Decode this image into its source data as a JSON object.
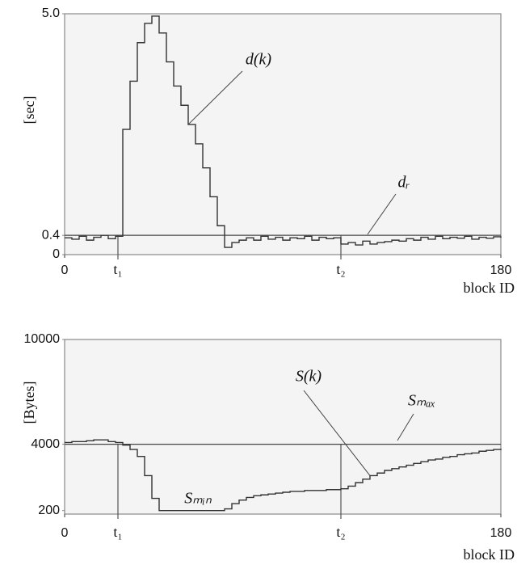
{
  "chart_data": [
    {
      "type": "line",
      "step": true,
      "y_label": "[sec]",
      "x_label": "block ID",
      "xlim": [
        0,
        180
      ],
      "xticks": [
        0,
        {
          "value": 22,
          "label": "t₁"
        },
        {
          "value": 114,
          "label": "t₂"
        },
        180
      ],
      "ylim": [
        0,
        5
      ],
      "yticks": [
        0,
        0.4,
        {
          "value": 5,
          "label": "5.0"
        }
      ],
      "reference": {
        "name": "dᵣ",
        "value": 0.4
      },
      "x": [
        0,
        3,
        6,
        9,
        12,
        15,
        18,
        21,
        24,
        27,
        30,
        33,
        36,
        39,
        42,
        45,
        48,
        51,
        54,
        57,
        60,
        63,
        66,
        69,
        72,
        75,
        78,
        81,
        84,
        87,
        90,
        93,
        96,
        99,
        102,
        105,
        108,
        111,
        114,
        117,
        120,
        123,
        126,
        129,
        132,
        135,
        138,
        141,
        144,
        147,
        150,
        153,
        156,
        159,
        162,
        165,
        168,
        171,
        174,
        177,
        180
      ],
      "series": [
        {
          "name": "d(k)",
          "color": "#333333",
          "values": [
            0.35,
            0.32,
            0.38,
            0.3,
            0.36,
            0.4,
            0.33,
            0.38,
            2.6,
            3.6,
            4.4,
            4.8,
            4.95,
            4.6,
            4.0,
            3.5,
            3.1,
            2.7,
            2.3,
            1.8,
            1.2,
            0.6,
            0.15,
            0.25,
            0.3,
            0.35,
            0.3,
            0.38,
            0.32,
            0.36,
            0.3,
            0.35,
            0.33,
            0.38,
            0.3,
            0.36,
            0.33,
            0.35,
            0.22,
            0.25,
            0.2,
            0.28,
            0.22,
            0.25,
            0.27,
            0.3,
            0.28,
            0.33,
            0.3,
            0.36,
            0.32,
            0.38,
            0.33,
            0.36,
            0.34,
            0.38,
            0.32,
            0.36,
            0.34,
            0.37,
            0.35
          ]
        }
      ]
    },
    {
      "type": "line",
      "step": true,
      "y_label": "[Bytes]",
      "x_label": "block ID",
      "xlim": [
        0,
        180
      ],
      "xticks": [
        0,
        {
          "value": 22,
          "label": "t₁"
        },
        {
          "value": 114,
          "label": "t₂"
        },
        180
      ],
      "ylim": [
        0,
        10000
      ],
      "yticks": [
        200,
        4000,
        10000
      ],
      "reference": {
        "name": "Sₘₐₓ",
        "value": 4000
      },
      "annotations": [
        "Sₘᵢₙ"
      ],
      "x": [
        0,
        3,
        6,
        9,
        12,
        15,
        18,
        21,
        24,
        27,
        30,
        33,
        36,
        39,
        42,
        45,
        48,
        51,
        54,
        57,
        60,
        63,
        66,
        69,
        72,
        75,
        78,
        81,
        84,
        87,
        90,
        93,
        96,
        99,
        102,
        105,
        108,
        111,
        114,
        117,
        120,
        123,
        126,
        129,
        132,
        135,
        138,
        141,
        144,
        147,
        150,
        153,
        156,
        159,
        162,
        165,
        168,
        171,
        174,
        177,
        180
      ],
      "series": [
        {
          "name": "S(k)",
          "color": "#333333",
          "values": [
            4100,
            4150,
            4150,
            4200,
            4250,
            4250,
            4150,
            4100,
            3950,
            3700,
            3300,
            2200,
            900,
            200,
            200,
            200,
            200,
            200,
            200,
            200,
            200,
            200,
            300,
            600,
            800,
            950,
            1050,
            1100,
            1150,
            1200,
            1250,
            1300,
            1300,
            1350,
            1350,
            1350,
            1400,
            1400,
            1450,
            1600,
            1800,
            2000,
            2200,
            2350,
            2500,
            2600,
            2700,
            2800,
            2900,
            3000,
            3100,
            3150,
            3250,
            3300,
            3400,
            3450,
            3500,
            3600,
            3650,
            3700,
            3750
          ]
        }
      ]
    }
  ]
}
